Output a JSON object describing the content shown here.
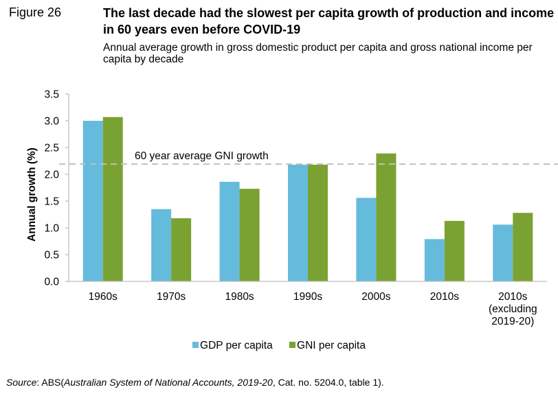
{
  "figure_label": "Figure 26",
  "title": "The last decade had the slowest per capita growth of production and income in 60 years even before COVID-19",
  "subtitle": "Annual average growth in gross domestic product per capita and gross national income per capita by decade",
  "colors": {
    "gdp": "#65BBDB",
    "gni": "#7AA232",
    "avg_line": "#BFBFBF",
    "axis": "#BFBFBF"
  },
  "chart_data": {
    "type": "bar",
    "title": "The last decade had the slowest per capita growth of production and income in 60 years even before COVID-19",
    "xlabel": "",
    "ylabel": "Annual growth (%)",
    "ylim": [
      0,
      3.5
    ],
    "yticks": [
      "0.0",
      "0.5",
      "1.0",
      "1.5",
      "2.0",
      "2.5",
      "3.0",
      "3.5"
    ],
    "ytick_values": [
      0,
      0.5,
      1.0,
      1.5,
      2.0,
      2.5,
      3.0,
      3.5
    ],
    "grid": false,
    "legend_position": "bottom",
    "categories": [
      [
        "1960s"
      ],
      [
        "1970s"
      ],
      [
        "1980s"
      ],
      [
        "1990s"
      ],
      [
        "2000s"
      ],
      [
        "2010s"
      ],
      [
        "2010s",
        "(excluding",
        "2019-20)"
      ]
    ],
    "series": [
      {
        "name": "GDP per capita",
        "values": [
          3.0,
          1.35,
          1.86,
          2.18,
          1.56,
          0.79,
          1.06
        ]
      },
      {
        "name": "GNI per capita",
        "values": [
          3.07,
          1.18,
          1.73,
          2.18,
          2.39,
          1.13,
          1.28
        ]
      }
    ],
    "reference_line": {
      "value": 2.19,
      "label": "60 year average GNI growth",
      "style": "dashed"
    }
  },
  "legend": [
    {
      "label": "GDP per capita"
    },
    {
      "label": "GNI per capita"
    }
  ],
  "source": {
    "prefix": "Source",
    "sep": ": ABS(",
    "publication": "Australian System of National Accounts, 2019-20",
    "suffix": ", Cat. no. 5204.0, table 1)."
  }
}
